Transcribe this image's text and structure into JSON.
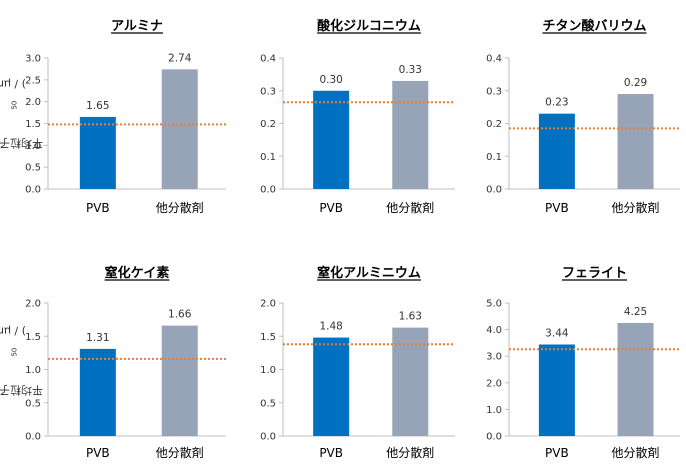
{
  "y_axis_label": {
    "pre": "平均粒子径(D",
    "sub": "50",
    "post": ") / μm"
  },
  "colors": {
    "pvb": "#0070c0",
    "other": "#97a3b6",
    "reference_line": "#ed7d31",
    "axis": "#bfbfbf",
    "text": "#333333"
  },
  "chart_data": [
    {
      "type": "bar",
      "title": "アルミナ",
      "categories": [
        "PVB",
        "他分散剤"
      ],
      "values": [
        1.65,
        2.74
      ],
      "value_labels": [
        "1.65",
        "2.74"
      ],
      "ylim": [
        0,
        3.0
      ],
      "yticks": [
        "0.0",
        "0.5",
        "1.0",
        "1.5",
        "2.0",
        "2.5",
        "3.0"
      ],
      "reference_value": 1.48,
      "grid": false,
      "legend": "none"
    },
    {
      "type": "bar",
      "title": "酸化ジルコニウム",
      "categories": [
        "PVB",
        "他分散剤"
      ],
      "values": [
        0.3,
        0.33
      ],
      "value_labels": [
        "0.30",
        "0.33"
      ],
      "ylim": [
        0,
        0.4
      ],
      "yticks": [
        "0.0",
        "0.1",
        "0.2",
        "0.3",
        "0.4"
      ],
      "reference_value": 0.265,
      "grid": false,
      "legend": "none"
    },
    {
      "type": "bar",
      "title": "チタン酸バリウム",
      "categories": [
        "PVB",
        "他分散剤"
      ],
      "values": [
        0.23,
        0.29
      ],
      "value_labels": [
        "0.23",
        "0.29"
      ],
      "ylim": [
        0,
        0.4
      ],
      "yticks": [
        "0.0",
        "0.1",
        "0.2",
        "0.3",
        "0.4"
      ],
      "reference_value": 0.185,
      "grid": false,
      "legend": "none"
    },
    {
      "type": "bar",
      "title": "窒化ケイ素",
      "categories": [
        "PVB",
        "他分散剤"
      ],
      "values": [
        1.31,
        1.66
      ],
      "value_labels": [
        "1.31",
        "1.66"
      ],
      "ylim": [
        0,
        2.0
      ],
      "yticks": [
        "0.0",
        "0.5",
        "1.0",
        "1.5",
        "2.0"
      ],
      "reference_value": 1.16,
      "grid": false,
      "legend": "none"
    },
    {
      "type": "bar",
      "title": "窒化アルミニウム",
      "categories": [
        "PVB",
        "他分散剤"
      ],
      "values": [
        1.48,
        1.63
      ],
      "value_labels": [
        "1.48",
        "1.63"
      ],
      "ylim": [
        0,
        2.0
      ],
      "yticks": [
        "0.0",
        "0.5",
        "1.0",
        "1.5",
        "2.0"
      ],
      "reference_value": 1.38,
      "grid": false,
      "legend": "none"
    },
    {
      "type": "bar",
      "title": "フェライト",
      "categories": [
        "PVB",
        "他分散剤"
      ],
      "values": [
        3.44,
        4.25
      ],
      "value_labels": [
        "3.44",
        "4.25"
      ],
      "ylim": [
        0,
        5.0
      ],
      "yticks": [
        "0.0",
        "1.0",
        "2.0",
        "3.0",
        "4.0",
        "5.0"
      ],
      "reference_value": 3.26,
      "grid": false,
      "legend": "none"
    }
  ]
}
